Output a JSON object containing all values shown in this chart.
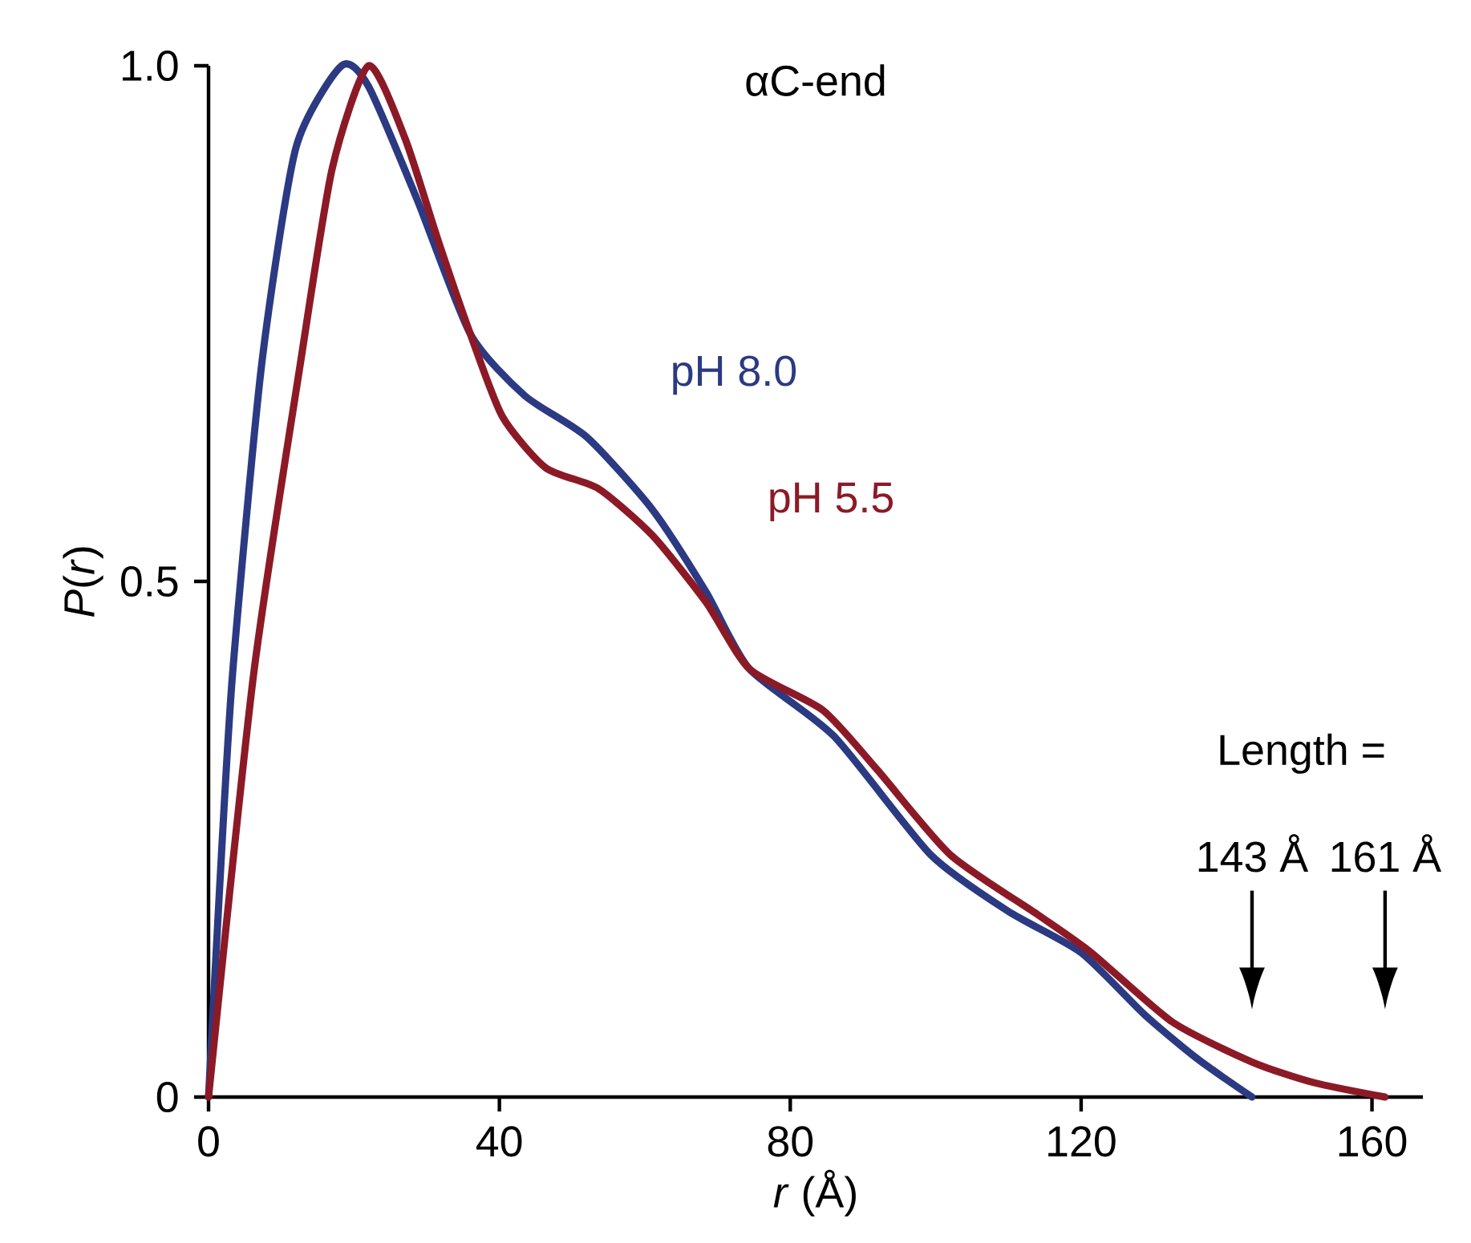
{
  "chart_data": {
    "type": "line",
    "title": "αC-end",
    "xlabel": "*r* (Å)",
    "ylabel": "*P*(*r*)",
    "xlim": [
      0,
      167
    ],
    "ylim": [
      0,
      1.0
    ],
    "xticks": [
      0,
      40,
      80,
      120,
      160
    ],
    "yticks": [
      0,
      {
        "value": 0.5,
        "label": "0.5"
      },
      {
        "value": 1.0,
        "label": "1.0"
      }
    ],
    "grid": false,
    "legend": false,
    "marker": "none",
    "line_style": "solid",
    "series": [
      {
        "name": "pH 8.0",
        "color": "#2b3a82",
        "x": [
          0,
          1.5,
          3.3,
          7.3,
          12,
          18.3,
          22,
          28.7,
          36,
          43.5,
          52,
          61,
          68.4,
          74.4,
          86,
          99.3,
          110,
          120,
          128.7,
          136,
          143.5
        ],
        "values": [
          0,
          0.2,
          0.41,
          0.71,
          0.92,
          1.0,
          0.98,
          0.87,
          0.74,
          0.68,
          0.64,
          0.57,
          0.49,
          0.415,
          0.35,
          0.235,
          0.18,
          0.14,
          0.08,
          0.037,
          0
        ]
      },
      {
        "name": "pH 5.5",
        "color": "#8c1a26",
        "x": [
          0,
          6.2,
          12.6,
          17,
          22,
          27,
          31.6,
          36,
          40.4,
          46.4,
          53.6,
          61,
          68.4,
          74.4,
          84.5,
          92,
          102,
          114,
          121.4,
          132.5,
          143.5,
          152,
          161.8
        ],
        "values": [
          0,
          0.41,
          0.71,
          0.9,
          1.0,
          0.93,
          0.83,
          0.74,
          0.66,
          0.61,
          0.59,
          0.545,
          0.48,
          0.415,
          0.375,
          0.317,
          0.235,
          0.177,
          0.14,
          0.073,
          0.034,
          0.014,
          0
        ]
      }
    ],
    "annotations": [
      "Length =",
      "143 Å",
      "161 Å"
    ]
  }
}
